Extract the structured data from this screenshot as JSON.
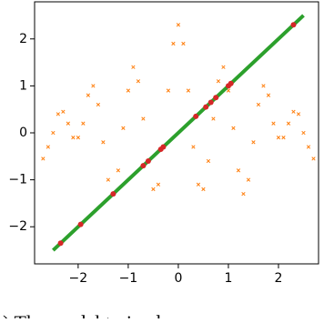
{
  "chart_data": {
    "type": "scatter",
    "caption": "(c) The model trained",
    "xlim": [
      -2.87,
      2.8
    ],
    "ylim": [
      -2.79,
      2.79
    ],
    "xticks": [
      {
        "value": -2,
        "label": "−2"
      },
      {
        "value": -1,
        "label": "−1"
      },
      0,
      1,
      2
    ],
    "yticks": [
      {
        "value": -2,
        "label": "−2"
      },
      {
        "value": -1,
        "label": "−1"
      },
      0,
      1,
      2
    ],
    "series": [
      {
        "marker": "x",
        "color": "#ff7f0e",
        "x": [
          -2.7,
          -2.6,
          -2.5,
          -2.4,
          -2.3,
          -2.2,
          -2.1,
          -2.0,
          -1.9,
          -1.8,
          -1.7,
          -1.6,
          -1.5,
          -1.4,
          -1.3,
          -1.2,
          -1.1,
          -1.0,
          -0.9,
          -0.8,
          -0.7,
          -0.6,
          -0.5,
          -0.4,
          -0.3,
          -0.2,
          -0.1,
          0.0,
          0.1,
          0.2,
          0.3,
          0.4,
          0.5,
          0.6,
          0.7,
          0.8,
          0.9,
          1.0,
          1.1,
          1.2,
          1.3,
          1.4,
          1.5,
          1.6,
          1.7,
          1.8,
          1.9,
          2.0,
          2.1,
          2.2,
          2.3,
          2.4,
          2.5,
          2.6,
          2.7
        ],
        "values": [
          -0.55,
          -0.3,
          0.0,
          0.4,
          0.45,
          0.2,
          -0.1,
          -0.1,
          0.2,
          0.8,
          1.0,
          0.6,
          -0.2,
          -1.0,
          -1.3,
          -0.8,
          0.1,
          0.9,
          1.4,
          1.1,
          0.3,
          -0.6,
          -1.2,
          -1.1,
          -0.3,
          0.9,
          1.9,
          2.3,
          1.9,
          0.9,
          -0.3,
          -1.1,
          -1.2,
          -0.6,
          0.3,
          1.1,
          1.4,
          0.9,
          0.1,
          -0.8,
          -1.3,
          -1.0,
          -0.2,
          0.6,
          1.0,
          0.8,
          0.2,
          -0.1,
          -0.1,
          0.2,
          0.45,
          0.4,
          0.0,
          -0.3,
          -0.55
        ]
      },
      {
        "marker": "line",
        "color": "#2ca02c",
        "x": [
          -2.5,
          2.5
        ],
        "values": [
          -2.5,
          2.5
        ]
      },
      {
        "marker": "o",
        "color": "#d62728",
        "x": [
          -2.35,
          -1.95,
          -1.3,
          -0.7,
          -0.6,
          -0.35,
          -0.3,
          0.35,
          0.55,
          0.65,
          0.75,
          1.0,
          1.05,
          2.3
        ],
        "values": [
          -2.35,
          -1.95,
          -1.3,
          -0.7,
          -0.6,
          -0.35,
          -0.3,
          0.35,
          0.55,
          0.65,
          0.75,
          1.0,
          1.05,
          2.3
        ]
      }
    ]
  }
}
